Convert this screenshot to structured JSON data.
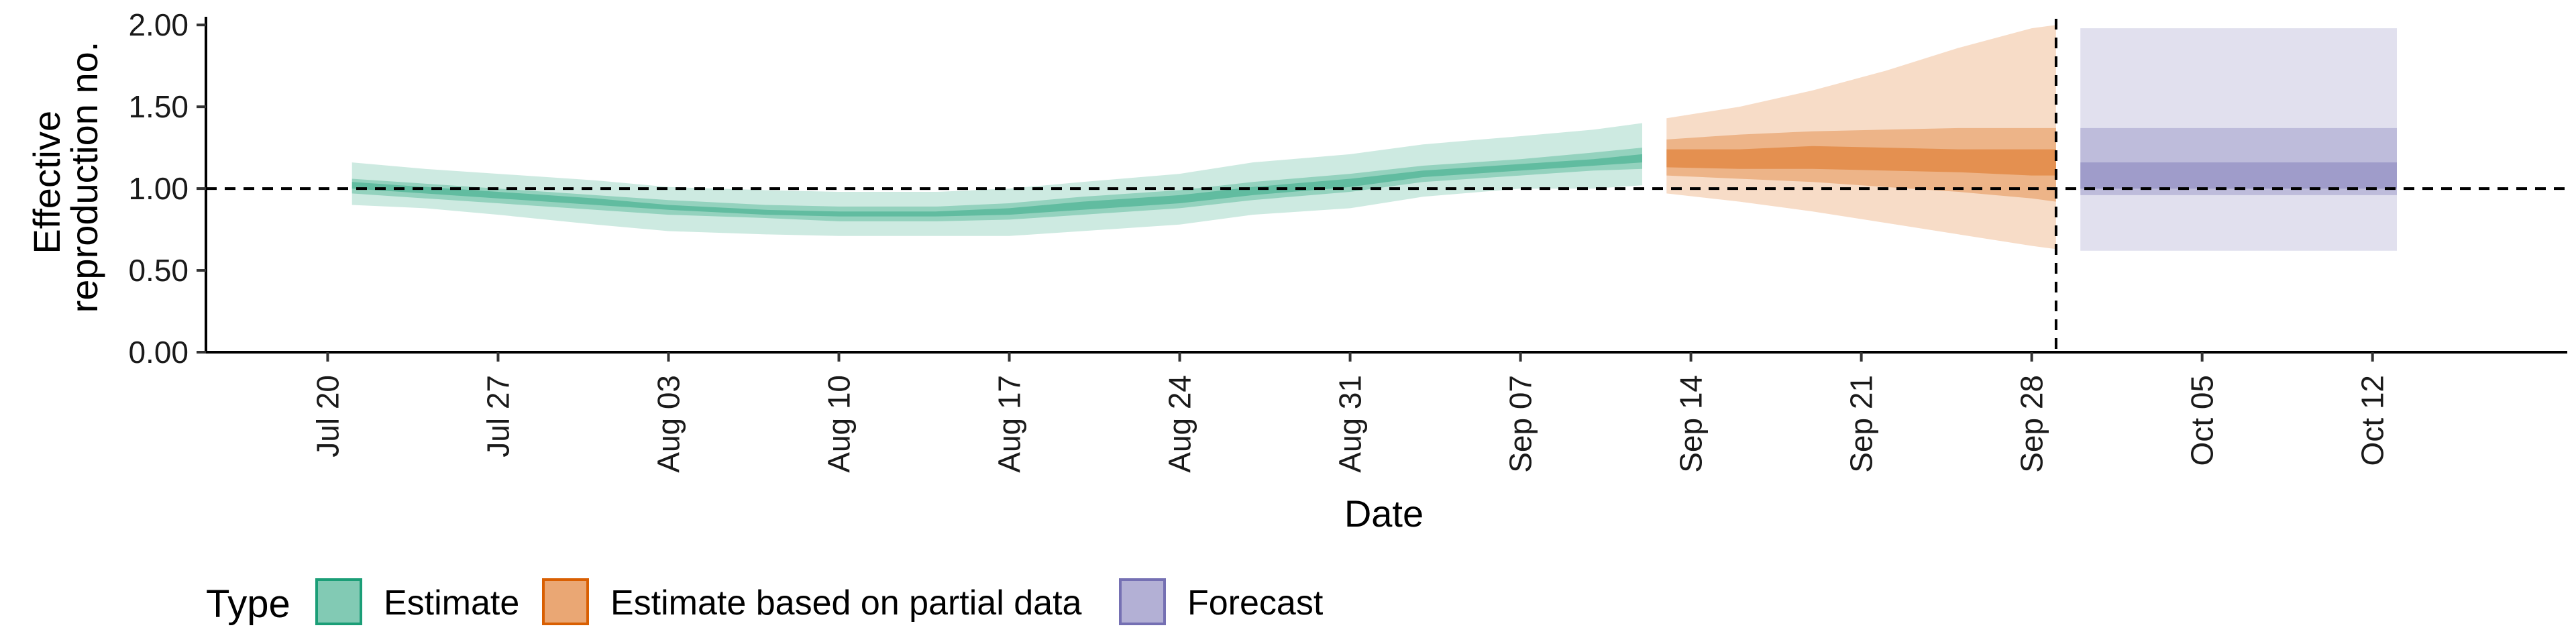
{
  "chart_data": {
    "type": "area",
    "xlabel": "Date",
    "ylabel": [
      "Effective",
      "reproduction no."
    ],
    "ylim": [
      0,
      2.05
    ],
    "xlim": [
      "2020-07-15",
      "2020-10-20"
    ],
    "x_ticks": [
      "Jul 20",
      "Jul 27",
      "Aug 03",
      "Aug 10",
      "Aug 17",
      "Aug 24",
      "Aug 31",
      "Sep 07",
      "Sep 14",
      "Sep 21",
      "Sep 28",
      "Oct 05",
      "Oct 12"
    ],
    "x_tick_dates": [
      "2020-07-20",
      "2020-07-27",
      "2020-08-03",
      "2020-08-10",
      "2020-08-17",
      "2020-08-24",
      "2020-08-31",
      "2020-09-07",
      "2020-09-14",
      "2020-09-21",
      "2020-09-28",
      "2020-10-05",
      "2020-10-12"
    ],
    "y_ticks": [
      "0.00",
      "0.50",
      "1.00",
      "1.50",
      "2.00"
    ],
    "y_tick_values": [
      0,
      0.5,
      1,
      1.5,
      2
    ],
    "hline": 1.0,
    "vline_date": "2020-09-29",
    "grid": false,
    "legend_position": "bottom",
    "legend_title": "Type",
    "series": [
      {
        "name": "Estimate",
        "color": "#1b9e77",
        "dates": [
          "2020-07-21",
          "2020-07-24",
          "2020-07-27",
          "2020-07-31",
          "2020-08-03",
          "2020-08-07",
          "2020-08-10",
          "2020-08-14",
          "2020-08-17",
          "2020-08-20",
          "2020-08-24",
          "2020-08-27",
          "2020-08-31",
          "2020-09-03",
          "2020-09-07",
          "2020-09-10",
          "2020-09-12"
        ],
        "lower90": [
          0.9,
          0.88,
          0.84,
          0.78,
          0.74,
          0.72,
          0.71,
          0.71,
          0.71,
          0.74,
          0.78,
          0.84,
          0.88,
          0.95,
          1.0,
          1.0,
          1.02
        ],
        "upper90": [
          1.16,
          1.12,
          1.09,
          1.05,
          1.01,
          0.99,
          0.98,
          0.98,
          1.0,
          1.04,
          1.09,
          1.16,
          1.21,
          1.27,
          1.32,
          1.36,
          1.4
        ],
        "lower50": [
          0.97,
          0.94,
          0.91,
          0.87,
          0.84,
          0.82,
          0.8,
          0.8,
          0.81,
          0.84,
          0.88,
          0.93,
          0.98,
          1.04,
          1.08,
          1.11,
          1.12
        ],
        "upper50": [
          1.06,
          1.03,
          1.0,
          0.96,
          0.93,
          0.9,
          0.89,
          0.89,
          0.91,
          0.95,
          0.99,
          1.04,
          1.09,
          1.14,
          1.18,
          1.22,
          1.25
        ],
        "lower20": [
          1.0,
          0.97,
          0.94,
          0.9,
          0.87,
          0.84,
          0.83,
          0.83,
          0.84,
          0.87,
          0.91,
          0.96,
          1.01,
          1.07,
          1.11,
          1.14,
          1.16
        ],
        "upper20": [
          1.04,
          1.01,
          0.98,
          0.94,
          0.9,
          0.87,
          0.86,
          0.86,
          0.88,
          0.92,
          0.96,
          1.01,
          1.06,
          1.11,
          1.15,
          1.18,
          1.21
        ]
      },
      {
        "name": "Estimate based on partial data",
        "color": "#d95f02",
        "dates": [
          "2020-09-13",
          "2020-09-16",
          "2020-09-19",
          "2020-09-22",
          "2020-09-25",
          "2020-09-28",
          "2020-09-29"
        ],
        "lower90": [
          0.97,
          0.92,
          0.86,
          0.79,
          0.72,
          0.65,
          0.63
        ],
        "upper90": [
          1.43,
          1.5,
          1.6,
          1.72,
          1.86,
          1.98,
          2.0
        ],
        "lower50": [
          1.08,
          1.06,
          1.04,
          1.01,
          0.98,
          0.94,
          0.92
        ],
        "upper50": [
          1.3,
          1.33,
          1.35,
          1.36,
          1.37,
          1.37,
          1.37
        ],
        "lower20": [
          1.13,
          1.12,
          1.12,
          1.11,
          1.1,
          1.08,
          1.08
        ],
        "upper20": [
          1.24,
          1.24,
          1.26,
          1.25,
          1.24,
          1.24,
          1.24
        ]
      },
      {
        "name": "Forecast",
        "color": "#7570b3",
        "dates": [
          "2020-09-30",
          "2020-10-13"
        ],
        "lower90": [
          0.62,
          0.62
        ],
        "upper90": [
          1.98,
          1.98
        ],
        "lower50": [
          0.96,
          0.96
        ],
        "upper50": [
          1.37,
          1.37
        ],
        "lower20": [
          1.0,
          1.0
        ],
        "upper20": [
          1.16,
          1.16
        ]
      }
    ]
  }
}
